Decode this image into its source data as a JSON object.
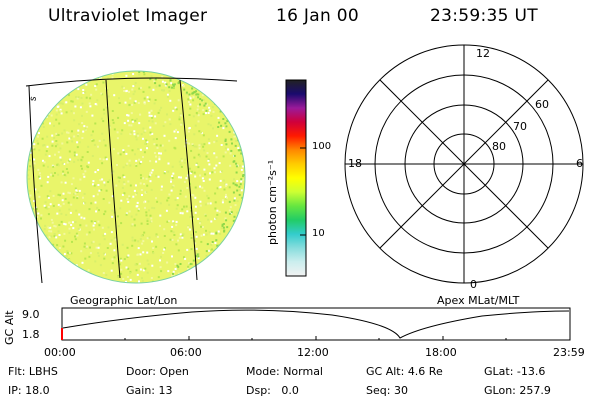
{
  "header": {
    "instrument": "Ultraviolet Imager",
    "date": "16 Jan 00",
    "time": "23:59:35 UT"
  },
  "colorbar": {
    "title": "photon cm⁻²s⁻¹",
    "ticks": [
      "100",
      "10"
    ],
    "stops": [
      "#222222",
      "#1a0a6e",
      "#9a1a9a",
      "#d0003a",
      "#ff1a00",
      "#ff8800",
      "#ffcc00",
      "#ffff00",
      "#ccff33",
      "#66e640",
      "#22cc66",
      "#33cccc",
      "#88dddd",
      "#cceeee",
      "#f2f2f2"
    ]
  },
  "globe": {
    "label": "Geographic Lat/Lon",
    "meridian_label": "s",
    "fill_color": "#e9f56a",
    "speckle_colors": [
      "#ffffff",
      "#d8ef6a",
      "#b8e64f",
      "#f3f8a0"
    ]
  },
  "polar": {
    "label": "Apex MLat/MLT",
    "mlt_labels": {
      "top": "12",
      "bottom": "0",
      "left": "18",
      "right": "6"
    },
    "lat_labels": [
      "80",
      "70",
      "60"
    ]
  },
  "altitude_plot": {
    "ylabel": "GC Alt",
    "y_ticks": [
      "9.0",
      "1.8"
    ],
    "x_ticks": [
      "00:00",
      "06:00",
      "12:00",
      "18:00",
      "23:59"
    ]
  },
  "info": {
    "flt_label": "Flt:",
    "flt_value": "LBHS",
    "door_label": "Door:",
    "door_value": "Open",
    "mode_label": "Mode:",
    "mode_value": "Normal",
    "gcalt_label": "GC Alt:",
    "gcalt_value": "4.6 Re",
    "glat_label": "GLat:",
    "glat_value": "-13.6",
    "ip_label": "IP:",
    "ip_value": "18.0",
    "gain_label": "Gain:",
    "gain_value": "13",
    "dsp_label": "Dsp:",
    "dsp_value": "0.0",
    "seq_label": "Seq:",
    "seq_value": "30",
    "glon_label": "GLon:",
    "glon_value": "257.9"
  }
}
